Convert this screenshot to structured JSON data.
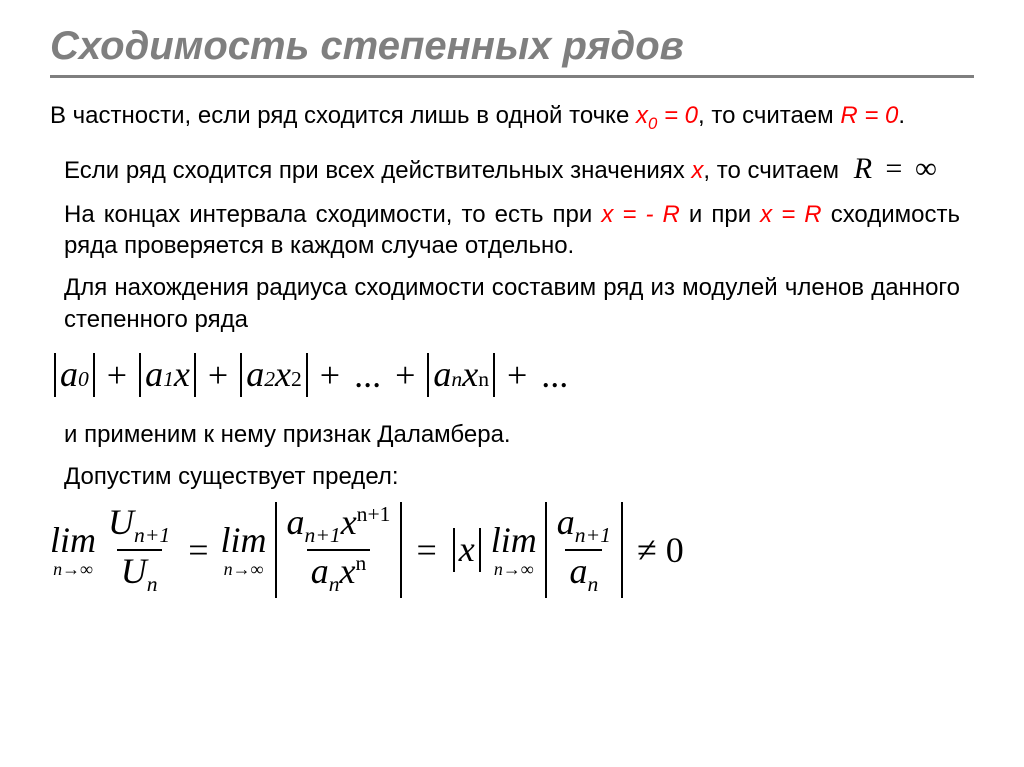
{
  "title": "Сходимость степенных рядов",
  "p1_a": "В частности, если ряд сходится лишь в одной точке ",
  "p1_var": "x",
  "p1_sub": "0",
  "p1_eq": " = 0",
  "p1_b": ", то считаем ",
  "p1_c": "R = 0",
  "p1_d": ".",
  "p2_a": "Если ряд сходится при всех действительных значениях ",
  "p2_var": "x",
  "p2_b": ", то считаем",
  "r_inf": "R  =  ∞",
  "p3_a": "На концах интервала сходимости, то есть при ",
  "p3_eq1": "x = - R",
  "p3_b": " и при ",
  "p3_eq2": "x = R",
  "p3_c": " сходимость ряда проверяется в каждом случае отдельно.",
  "p4": "Для нахождения радиуса сходимости составим ряд из модулей членов данного степенного ряда",
  "series": {
    "a0": "a",
    "sub0": "0",
    "a1": "a",
    "sub1": "1",
    "x1": "x",
    "a2": "a",
    "sub2": "2",
    "x2": "x",
    "e2": "2",
    "an": "a",
    "subn": "n",
    "xn": "x",
    "en": "n",
    "plus": "+",
    "dots": "..."
  },
  "p5": "и применим к нему признак Даламбера.",
  "p6": "Допустим существует предел:",
  "limit": {
    "lim": "lim",
    "to": "n→∞",
    "U": "U",
    "np1": "n+1",
    "n": "n",
    "a": "a",
    "x": "x",
    "eq": "=",
    "neq": "≠ 0"
  },
  "colors": {
    "title": "#7f7f7f",
    "accent": "#ff0000",
    "text": "#000000",
    "bg": "#ffffff"
  },
  "fontsizes": {
    "title": 40,
    "body": 24,
    "formula": 36
  }
}
